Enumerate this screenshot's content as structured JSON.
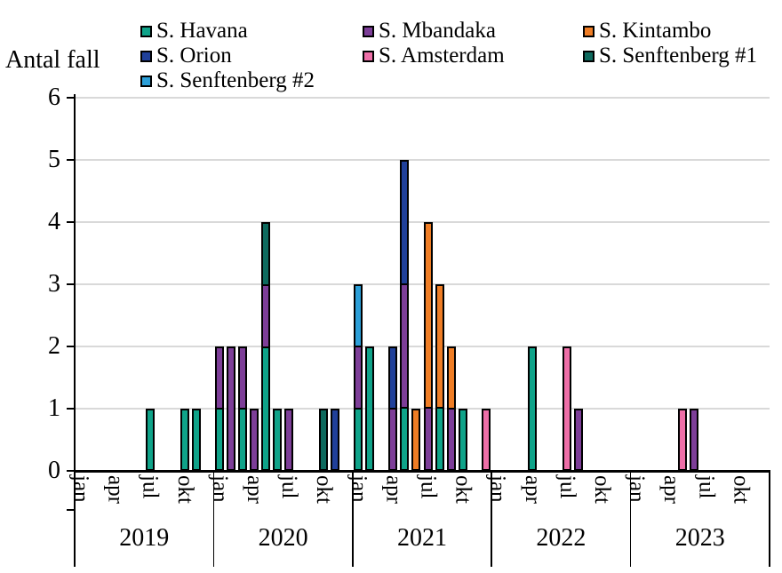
{
  "title": "Antal fall",
  "legend": {
    "items": [
      {
        "name": "S. Havana",
        "color": "#0FA389",
        "col": 0,
        "row": 0
      },
      {
        "name": "S. Orion",
        "color": "#20409A",
        "col": 0,
        "row": 1
      },
      {
        "name": "S. Senftenberg #2",
        "color": "#2C9FD8",
        "col": 0,
        "row": 2
      },
      {
        "name": "S. Mbandaka",
        "color": "#7D3E98",
        "col": 1,
        "row": 0
      },
      {
        "name": "S. Amsterdam",
        "color": "#EE6FA8",
        "col": 1,
        "row": 1
      },
      {
        "name": "S. Kintambo",
        "color": "#EF7D25",
        "col": 2,
        "row": 0
      },
      {
        "name": "S. Senftenberg #1",
        "color": "#0E6A5E",
        "col": 2,
        "row": 1
      }
    ]
  },
  "chart_data": {
    "type": "bar",
    "stacked": true,
    "title": "",
    "ylabel": "Antal fall",
    "xlabel": "",
    "ylim": [
      0,
      6
    ],
    "yticks": [
      "0",
      "1",
      "2",
      "3",
      "4",
      "5",
      "6"
    ],
    "grid": "horizontal",
    "gridline_color": "#D9D9D9",
    "axis_color": "#000000",
    "legend_position": "top",
    "years": [
      "2019",
      "2020",
      "2021",
      "2022",
      "2023"
    ],
    "months": [
      "jan",
      "feb",
      "mar",
      "apr",
      "maj",
      "jun",
      "jul",
      "aug",
      "sep",
      "okt",
      "nov",
      "dec"
    ],
    "month_ticks_shown": [
      "jan",
      "apr",
      "jul",
      "okt"
    ],
    "series": [
      {
        "name": "S. Havana",
        "color": "#0FA389",
        "points": [
          {
            "year": "2019",
            "month": "jul",
            "value": 1
          },
          {
            "year": "2019",
            "month": "okt",
            "value": 1
          },
          {
            "year": "2019",
            "month": "nov",
            "value": 1
          },
          {
            "year": "2020",
            "month": "jan",
            "value": 1
          },
          {
            "year": "2020",
            "month": "mar",
            "value": 1
          },
          {
            "year": "2020",
            "month": "maj",
            "value": 2
          },
          {
            "year": "2020",
            "month": "jun",
            "value": 1
          },
          {
            "year": "2021",
            "month": "jan",
            "value": 1
          },
          {
            "year": "2021",
            "month": "feb",
            "value": 2
          },
          {
            "year": "2021",
            "month": "maj",
            "value": 1
          },
          {
            "year": "2021",
            "month": "aug",
            "value": 1
          },
          {
            "year": "2021",
            "month": "okt",
            "value": 1
          },
          {
            "year": "2022",
            "month": "apr",
            "value": 2
          }
        ]
      },
      {
        "name": "S. Mbandaka",
        "color": "#7D3E98",
        "points": [
          {
            "year": "2020",
            "month": "jan",
            "value": 1
          },
          {
            "year": "2020",
            "month": "feb",
            "value": 2
          },
          {
            "year": "2020",
            "month": "mar",
            "value": 1
          },
          {
            "year": "2020",
            "month": "apr",
            "value": 1
          },
          {
            "year": "2020",
            "month": "maj",
            "value": 1
          },
          {
            "year": "2020",
            "month": "jul",
            "value": 1
          },
          {
            "year": "2021",
            "month": "jan",
            "value": 1
          },
          {
            "year": "2021",
            "month": "apr",
            "value": 1
          },
          {
            "year": "2021",
            "month": "maj",
            "value": 2
          },
          {
            "year": "2021",
            "month": "jul",
            "value": 1
          },
          {
            "year": "2021",
            "month": "sep",
            "value": 1
          },
          {
            "year": "2022",
            "month": "aug",
            "value": 1
          },
          {
            "year": "2023",
            "month": "jun",
            "value": 1
          }
        ]
      },
      {
        "name": "S. Kintambo",
        "color": "#EF7D25",
        "points": [
          {
            "year": "2021",
            "month": "jun",
            "value": 1
          },
          {
            "year": "2021",
            "month": "jul",
            "value": 3
          },
          {
            "year": "2021",
            "month": "aug",
            "value": 2
          },
          {
            "year": "2021",
            "month": "sep",
            "value": 1
          }
        ]
      },
      {
        "name": "S. Orion",
        "color": "#20409A",
        "points": [
          {
            "year": "2020",
            "month": "nov",
            "value": 1
          },
          {
            "year": "2021",
            "month": "apr",
            "value": 1
          },
          {
            "year": "2021",
            "month": "maj",
            "value": 2
          }
        ]
      },
      {
        "name": "S. Amsterdam",
        "color": "#EE6FA8",
        "points": [
          {
            "year": "2021",
            "month": "dec",
            "value": 1
          },
          {
            "year": "2022",
            "month": "jul",
            "value": 2
          },
          {
            "year": "2023",
            "month": "maj",
            "value": 1
          }
        ]
      },
      {
        "name": "S. Senftenberg #1",
        "color": "#0E6A5E",
        "points": [
          {
            "year": "2020",
            "month": "maj",
            "value": 1
          },
          {
            "year": "2020",
            "month": "okt",
            "value": 1
          }
        ]
      },
      {
        "name": "S. Senftenberg #2",
        "color": "#2C9FD8",
        "points": [
          {
            "year": "2021",
            "month": "jan",
            "value": 1
          }
        ]
      }
    ]
  }
}
